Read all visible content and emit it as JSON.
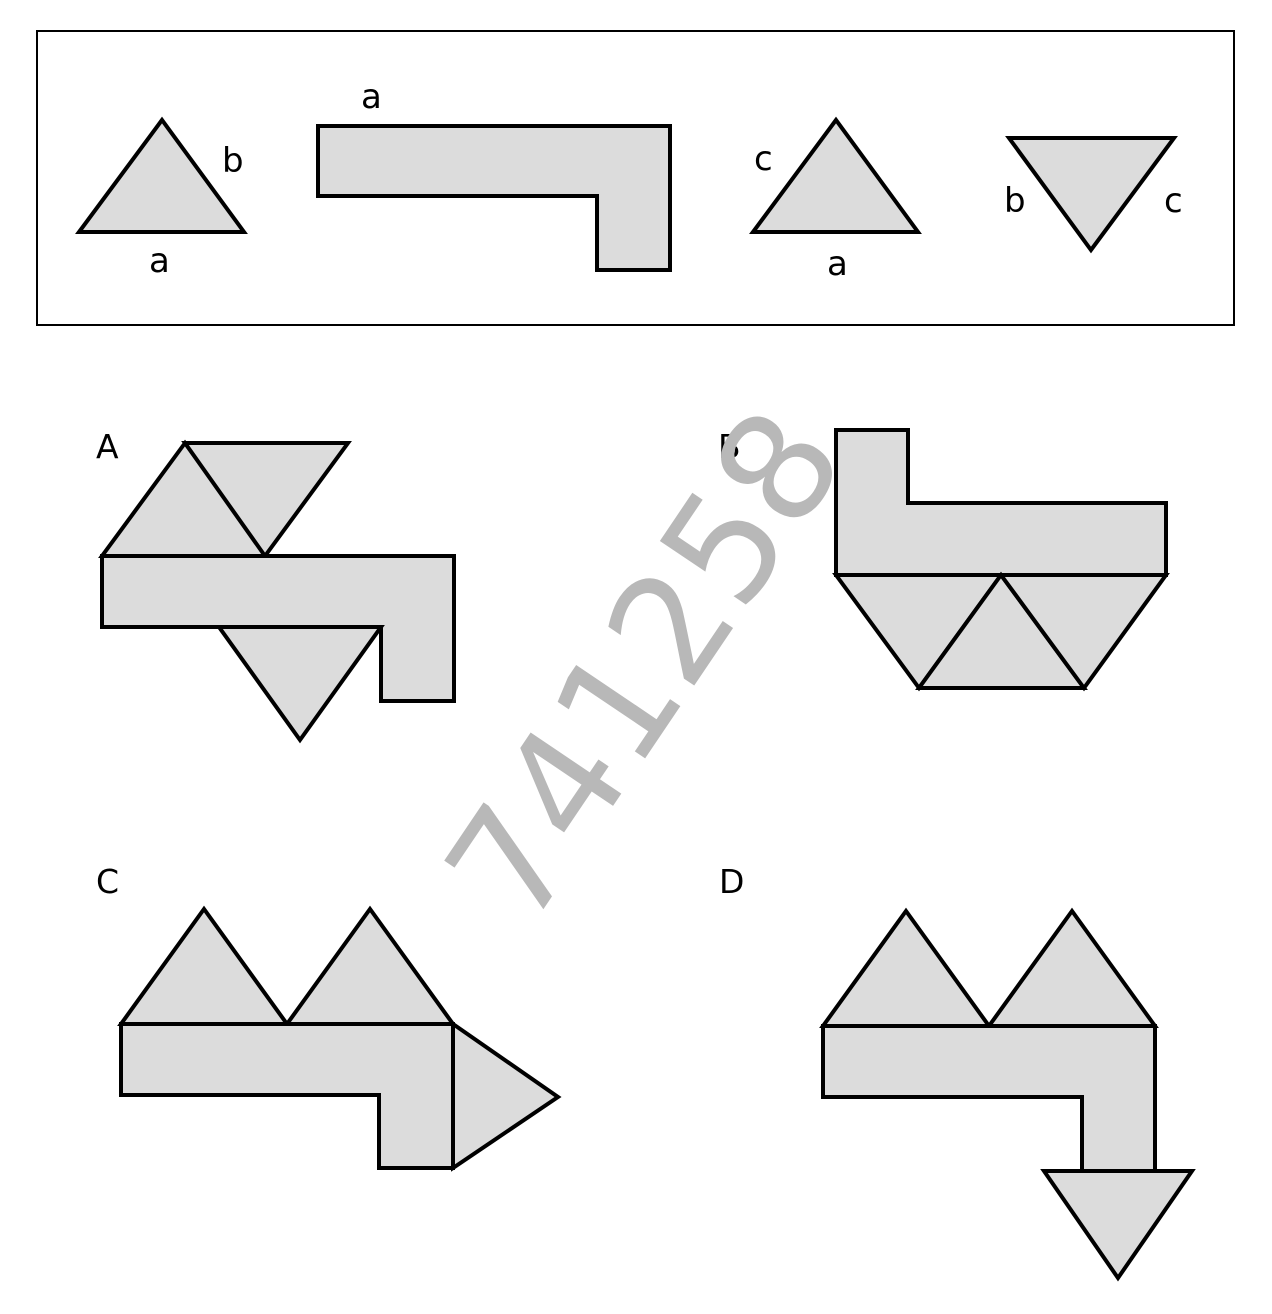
{
  "pieces": {
    "triangle_ab": {
      "side_labels": [
        "b",
        "a"
      ]
    },
    "l_shape": {
      "label": "a"
    },
    "triangle_ca": {
      "side_labels": [
        "c",
        "a"
      ]
    },
    "triangle_bc": {
      "side_labels": [
        "b",
        "c"
      ]
    }
  },
  "options": [
    {
      "label": "A"
    },
    {
      "label": "B"
    },
    {
      "label": "C"
    },
    {
      "label": "D"
    }
  ],
  "watermark": "741258",
  "colors": {
    "fill": "#dcdcdc",
    "stroke": "#000000",
    "watermark": "#b8b8b8"
  }
}
